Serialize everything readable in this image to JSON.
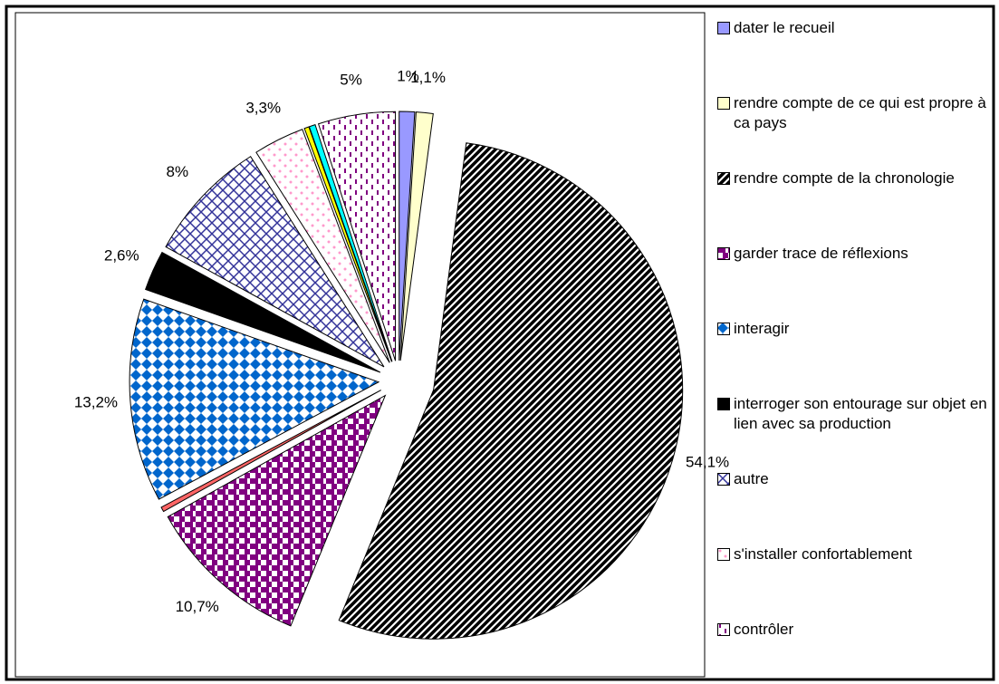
{
  "chart_data": {
    "type": "pie",
    "categories": [
      "dater le recueil",
      "rendre compte de ce qui est propre à ca pays",
      "rendre compte de la chronologie",
      "garder trace de réflexions",
      null,
      "interagir",
      "interroger son entourage sur objet en lien avec sa production",
      "autre",
      "s'installer confortablement",
      null,
      null,
      "contrôler"
    ],
    "values": [
      1,
      1.1,
      54.1,
      10.7,
      0.3,
      13.2,
      2.6,
      8,
      3.3,
      0.3,
      0.4,
      5
    ],
    "value_labels": [
      "1%",
      "1,1%",
      "54,1%",
      "10,7%",
      null,
      "13,2%",
      "2,6%",
      "8%",
      "3,3%",
      null,
      null,
      "5%"
    ],
    "colors": [
      "#9999ff",
      "#ffffcc",
      "#000000",
      "#800080",
      "#ff6666",
      "#0066cc",
      "#000000",
      "#333399",
      "#ff99cc",
      "#ffff00",
      "#00ffff",
      "#800080"
    ],
    "legend": "right"
  }
}
